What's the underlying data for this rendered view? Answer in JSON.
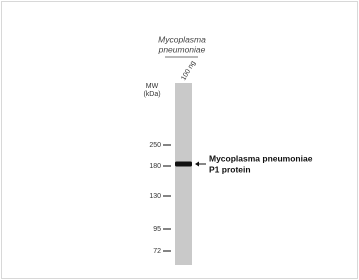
{
  "figure": {
    "title": [
      "Mycoplasma",
      "pneumoniae"
    ],
    "lane_label": "100 ng",
    "mw_label": [
      "MW",
      "(kDa)"
    ],
    "markers": [
      "250",
      "180",
      "130",
      "95",
      "72"
    ],
    "annotation": [
      "Mycoplasma pneumoniae",
      "P1 protein"
    ]
  }
}
